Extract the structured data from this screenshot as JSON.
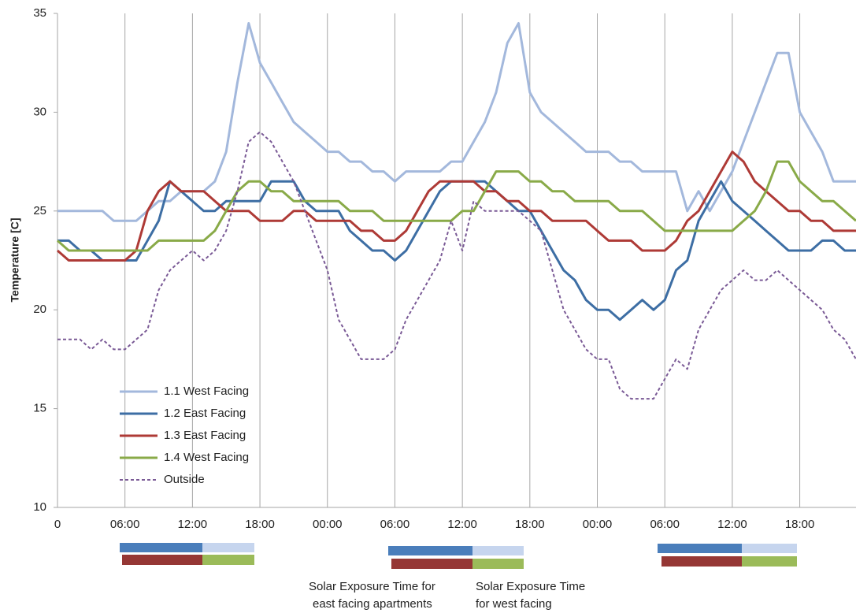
{
  "chart_data": {
    "type": "line",
    "y_label": "Temperature [C]",
    "x": [
      0,
      1,
      2,
      3,
      4,
      5,
      6,
      7,
      8,
      9,
      10,
      11,
      12,
      13,
      14,
      15,
      16,
      17,
      18,
      19,
      20,
      21,
      22,
      23,
      24,
      25,
      26,
      27,
      28,
      29,
      30,
      31,
      32,
      33,
      34,
      35,
      36,
      37,
      38,
      39,
      40,
      41,
      42,
      43,
      44,
      45,
      46,
      47,
      48,
      49,
      50,
      51,
      52,
      53,
      54,
      55,
      56,
      57,
      58,
      59,
      60,
      61,
      62,
      63,
      64,
      65,
      66,
      67,
      68,
      69,
      70,
      71
    ],
    "xlim": [
      0,
      71
    ],
    "xticks": [
      0,
      {
        "value": 6,
        "label": "06:00"
      },
      {
        "value": 12,
        "label": "12:00"
      },
      {
        "value": 18,
        "label": "18:00"
      },
      {
        "value": 24,
        "label": "00:00"
      },
      {
        "value": 30,
        "label": "06:00"
      },
      {
        "value": 36,
        "label": "12:00"
      },
      {
        "value": 42,
        "label": "18:00"
      },
      {
        "value": 48,
        "label": "00:00"
      },
      {
        "value": 54,
        "label": "06:00"
      },
      {
        "value": 60,
        "label": "12:00"
      },
      {
        "value": 66,
        "label": "18:00"
      }
    ],
    "ylim": [
      10,
      35
    ],
    "yticks": [
      10,
      15,
      20,
      25,
      30,
      35
    ],
    "x_grid": true,
    "legend": "lower left",
    "series": [
      {
        "name": "1.1 West Facing",
        "color": "#a3b8dc",
        "style": "solid",
        "values": [
          25,
          25,
          25,
          25,
          25,
          24.5,
          24.5,
          24.5,
          25,
          25.5,
          25.5,
          26,
          26,
          26,
          26.5,
          28,
          31.5,
          34.5,
          32.5,
          31.5,
          30.5,
          29.5,
          29,
          28.5,
          28,
          28,
          27.5,
          27.5,
          27,
          27,
          26.5,
          27,
          27,
          27,
          27,
          27.5,
          27.5,
          28.5,
          29.5,
          31,
          33.5,
          34.5,
          31,
          30,
          29.5,
          29,
          28.5,
          28,
          28,
          28,
          27.5,
          27.5,
          27,
          27,
          27,
          27,
          25,
          26,
          25,
          26,
          27,
          28.5,
          30,
          31.5,
          33,
          33,
          30,
          29,
          28,
          26.5,
          26.5,
          26.5
        ]
      },
      {
        "name": "1.2 East Facing",
        "color": "#3d6ea4",
        "style": "solid",
        "values": [
          23.5,
          23.5,
          23,
          23,
          22.5,
          22.5,
          22.5,
          22.5,
          23.5,
          24.5,
          26.5,
          26,
          25.5,
          25,
          25,
          25.5,
          25.5,
          25.5,
          25.5,
          26.5,
          26.5,
          26.5,
          25.5,
          25,
          25,
          25,
          24,
          23.5,
          23,
          23,
          22.5,
          23,
          24,
          25,
          26,
          26.5,
          26.5,
          26.5,
          26.5,
          26,
          25.5,
          25,
          25,
          24,
          23,
          22,
          21.5,
          20.5,
          20,
          20,
          19.5,
          20,
          20.5,
          20,
          20.5,
          22,
          22.5,
          24.5,
          25.5,
          26.5,
          25.5,
          25,
          24.5,
          24,
          23.5,
          23,
          23,
          23,
          23.5,
          23.5,
          23,
          23
        ]
      },
      {
        "name": "1.3 East Facing",
        "color": "#ae3a36",
        "style": "solid",
        "values": [
          23,
          22.5,
          22.5,
          22.5,
          22.5,
          22.5,
          22.5,
          23,
          25,
          26,
          26.5,
          26,
          26,
          26,
          25.5,
          25,
          25,
          25,
          24.5,
          24.5,
          24.5,
          25,
          25,
          24.5,
          24.5,
          24.5,
          24.5,
          24,
          24,
          23.5,
          23.5,
          24,
          25,
          26,
          26.5,
          26.5,
          26.5,
          26.5,
          26,
          26,
          25.5,
          25.5,
          25,
          25,
          24.5,
          24.5,
          24.5,
          24.5,
          24,
          23.5,
          23.5,
          23.5,
          23,
          23,
          23,
          23.5,
          24.5,
          25,
          26,
          27,
          28,
          27.5,
          26.5,
          26,
          25.5,
          25,
          25,
          24.5,
          24.5,
          24,
          24,
          24
        ]
      },
      {
        "name": "1.4 West Facing",
        "color": "#89aa48",
        "style": "solid",
        "values": [
          23.5,
          23,
          23,
          23,
          23,
          23,
          23,
          23,
          23,
          23.5,
          23.5,
          23.5,
          23.5,
          23.5,
          24,
          25,
          26,
          26.5,
          26.5,
          26,
          26,
          25.5,
          25.5,
          25.5,
          25.5,
          25.5,
          25,
          25,
          25,
          24.5,
          24.5,
          24.5,
          24.5,
          24.5,
          24.5,
          24.5,
          25,
          25,
          26,
          27,
          27,
          27,
          26.5,
          26.5,
          26,
          26,
          25.5,
          25.5,
          25.5,
          25.5,
          25,
          25,
          25,
          24.5,
          24,
          24,
          24,
          24,
          24,
          24,
          24,
          24.5,
          25,
          26,
          27.5,
          27.5,
          26.5,
          26,
          25.5,
          25.5,
          25,
          24.5
        ]
      },
      {
        "name": "Outside",
        "color": "#7a5a96",
        "style": "dashed",
        "values": [
          18.5,
          18.5,
          18.5,
          18,
          18.5,
          18,
          18,
          18.5,
          19,
          21,
          22,
          22.5,
          23,
          22.5,
          23,
          24,
          26,
          28.5,
          29,
          28.5,
          27.5,
          26.5,
          25,
          23.5,
          22,
          19.5,
          18.5,
          17.5,
          17.5,
          17.5,
          18,
          19.5,
          20.5,
          21.5,
          22.5,
          24.5,
          23,
          25.5,
          25,
          25,
          25,
          25,
          24.5,
          24,
          22,
          20,
          19,
          18,
          17.5,
          17.5,
          16,
          15.5,
          15.5,
          15.5,
          16.5,
          17.5,
          17,
          19,
          20,
          21,
          21.5,
          22,
          21.5,
          21.5,
          22,
          21.5,
          21,
          20.5,
          20,
          19,
          18.5,
          17.5
        ]
      }
    ],
    "annotations": [
      [
        "Solar Exposure Time for",
        "east facing apartments"
      ],
      [
        "Solar Exposure Time",
        "for west facing"
      ]
    ]
  }
}
